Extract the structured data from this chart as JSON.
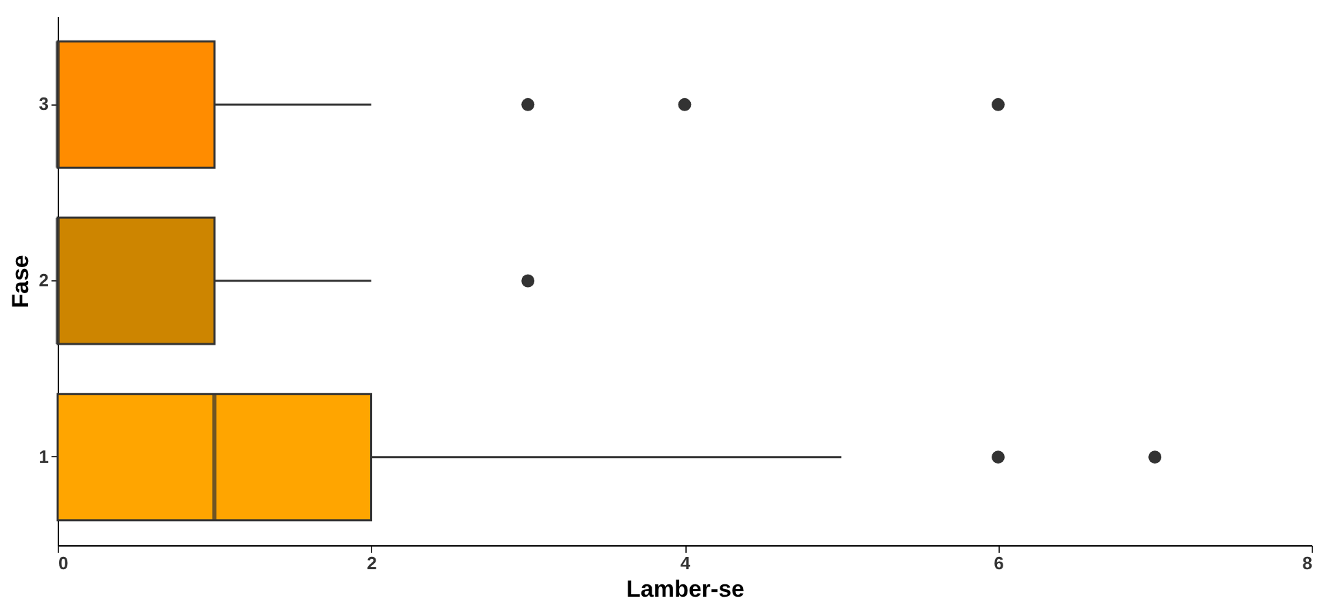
{
  "chart_data": {
    "type": "box",
    "orientation": "horizontal",
    "xlabel": "Lamber-se",
    "ylabel": "Fase",
    "categories": [
      "3",
      "2",
      "1"
    ],
    "colors": [
      "#ff8c00",
      "#cd8500",
      "#ffa500"
    ],
    "boxes": [
      {
        "low": 0,
        "q1": 0,
        "median": 0,
        "q3": 1,
        "high": 2,
        "outliers": [
          3,
          4,
          6
        ]
      },
      {
        "low": 0,
        "q1": 0,
        "median": 0,
        "q3": 1,
        "high": 2,
        "outliers": [
          3
        ]
      },
      {
        "low": 0,
        "q1": 0,
        "median": 1,
        "q3": 2,
        "high": 5,
        "outliers": [
          6,
          7
        ]
      }
    ],
    "xlim": [
      0,
      8
    ],
    "xticks": [
      0,
      2,
      4,
      6,
      8
    ],
    "grid": false
  }
}
